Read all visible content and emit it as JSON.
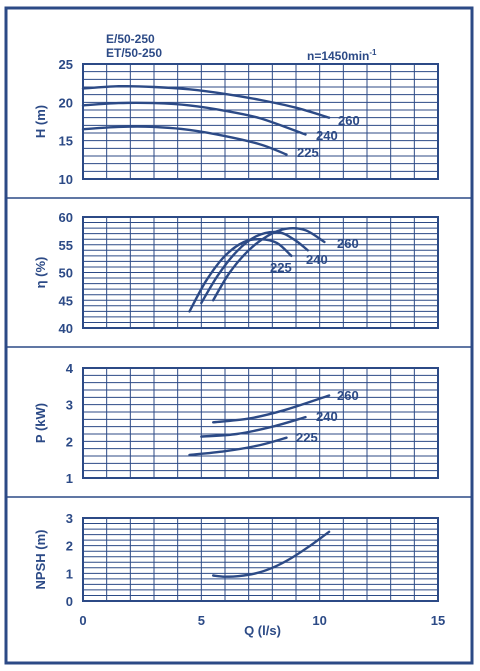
{
  "header": {
    "model_line1": "E/50-250",
    "model_line2": "ET/50-250",
    "speed_prefix": "n=1450min",
    "speed_exp": "-1"
  },
  "colors": {
    "frame": "#2c4a86",
    "grid": "#2c4a86",
    "curve": "#2c4a86",
    "background": "#ffffff"
  },
  "chart_data": [
    {
      "type": "line",
      "ylabel": "H (m)",
      "xlim": [
        0,
        15
      ],
      "ylim": [
        10,
        25
      ],
      "yticks": [
        10,
        15,
        20,
        25
      ],
      "series": [
        {
          "name": "260",
          "x": [
            0,
            1.5,
            3,
            4.5,
            6,
            7.5,
            9,
            10.4
          ],
          "y": [
            21.8,
            22.1,
            22.0,
            21.7,
            21.1,
            20.3,
            19.3,
            18.0
          ]
        },
        {
          "name": "240",
          "x": [
            0,
            1.5,
            3,
            4.5,
            6,
            7.5,
            9.4
          ],
          "y": [
            19.6,
            19.9,
            19.9,
            19.6,
            18.9,
            17.9,
            15.8
          ]
        },
        {
          "name": "225",
          "x": [
            0,
            1.5,
            3,
            4.5,
            6,
            7.5,
            8.6
          ],
          "y": [
            16.5,
            16.8,
            16.8,
            16.4,
            15.6,
            14.5,
            13.2
          ]
        }
      ]
    },
    {
      "type": "line",
      "ylabel": "η (%)",
      "xlim": [
        0,
        15
      ],
      "ylim": [
        40,
        60
      ],
      "yticks": [
        40,
        45,
        50,
        55,
        60
      ],
      "series": [
        {
          "name": "260",
          "x": [
            5.5,
            6.2,
            7.0,
            7.8,
            8.6,
            9.4,
            10.2
          ],
          "y": [
            45.0,
            50.0,
            54.0,
            56.6,
            57.9,
            57.6,
            55.5
          ]
        },
        {
          "name": "240",
          "x": [
            5.0,
            5.7,
            6.5,
            7.3,
            8.2,
            8.9,
            9.5
          ],
          "y": [
            44.5,
            49.5,
            53.8,
            56.5,
            57.3,
            56.0,
            54.0
          ]
        },
        {
          "name": "225",
          "x": [
            4.5,
            5.2,
            6.0,
            6.8,
            7.5,
            8.2,
            8.8
          ],
          "y": [
            43.0,
            48.5,
            53.0,
            55.5,
            56.0,
            55.3,
            53.0
          ]
        }
      ]
    },
    {
      "type": "line",
      "ylabel": "P (kW)",
      "xlim": [
        0,
        15
      ],
      "ylim": [
        1,
        4
      ],
      "yticks": [
        1,
        2,
        3,
        4
      ],
      "series": [
        {
          "name": "260",
          "x": [
            5.5,
            7.0,
            8.5,
            10.4
          ],
          "y": [
            2.52,
            2.62,
            2.85,
            3.25
          ]
        },
        {
          "name": "240",
          "x": [
            5.0,
            6.5,
            8.0,
            9.4
          ],
          "y": [
            2.13,
            2.2,
            2.4,
            2.66
          ]
        },
        {
          "name": "225",
          "x": [
            4.5,
            6.0,
            7.5,
            8.6
          ],
          "y": [
            1.63,
            1.73,
            1.9,
            2.1
          ]
        }
      ]
    },
    {
      "type": "line",
      "ylabel": "NPSH (m)",
      "xlabel": "Q (l/s)",
      "xlim": [
        0,
        15
      ],
      "ylim": [
        0,
        3
      ],
      "yticks": [
        0,
        1,
        2,
        3
      ],
      "xticks": [
        0,
        5,
        10,
        15
      ],
      "series": [
        {
          "x": [
            5.5,
            6.0,
            6.6,
            7.3,
            8.0,
            8.8,
            9.6,
            10.4
          ],
          "y": [
            0.92,
            0.88,
            0.9,
            1.0,
            1.2,
            1.55,
            2.0,
            2.5
          ]
        }
      ]
    }
  ]
}
